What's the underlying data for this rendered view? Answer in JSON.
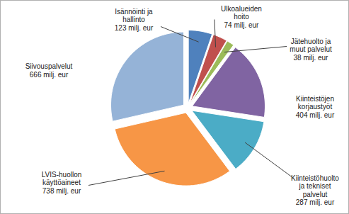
{
  "chart_data": {
    "type": "pie",
    "categories": [
      "Isännöinti ja hallinto",
      "Ulkoalueiden hoito",
      "Jätehuolto ja muut palvelut",
      "Kiinteistöjen korjaustyöt",
      "Kiinteistöhuolto ja tekniset palvelut",
      "LVIS-huollon käyttöaineet",
      "Siivouspalvelut"
    ],
    "values": [
      123,
      74,
      38,
      404,
      287,
      738,
      666
    ],
    "value_labels": [
      "123 milj. eur",
      "74 milj. eur",
      "38 milj. eur",
      "404 milj. eur",
      "287 milj. eur",
      "738 milj. eur",
      "666 milj. eur"
    ],
    "colors": [
      "#4f81bd",
      "#c0504d",
      "#9bbb59",
      "#8064a2",
      "#4bacc6",
      "#f79646",
      "#95b3d7"
    ],
    "data_labels": true,
    "tick_labels": false
  }
}
